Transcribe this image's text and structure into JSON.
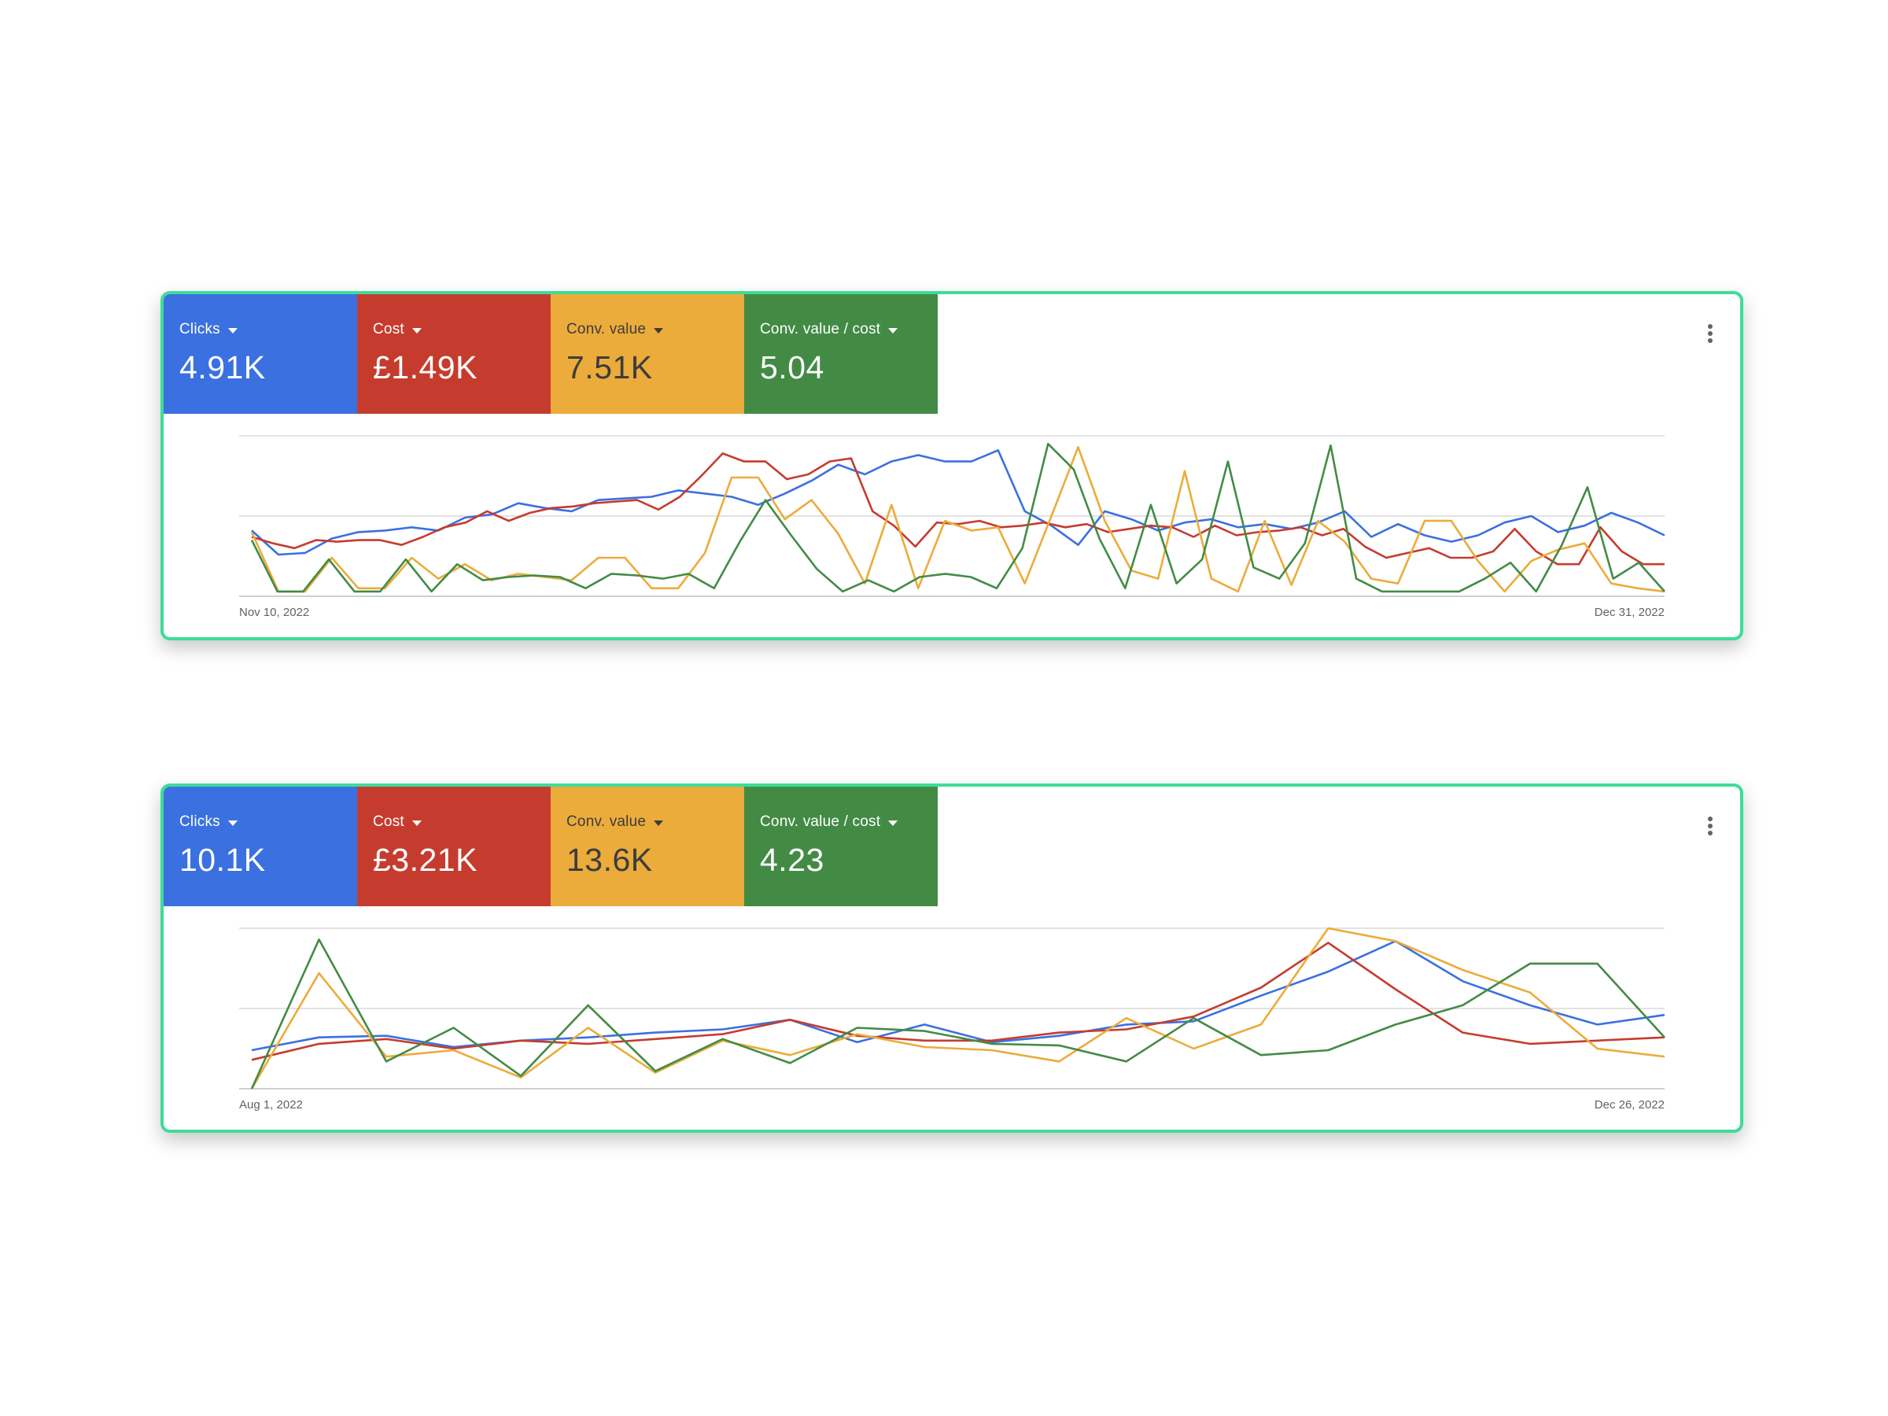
{
  "cards": [
    {
      "tiles": [
        {
          "label": "Clicks",
          "value": "4.91K",
          "color": "#3b70e0"
        },
        {
          "label": "Cost",
          "value": "£1.49K",
          "color": "#c53c2f"
        },
        {
          "label": "Conv. value",
          "value": "7.51K",
          "color": "#ebac3b"
        },
        {
          "label": "Conv. value / cost",
          "value": "5.04",
          "color": "#438b45"
        }
      ],
      "menu_icon": "more-vert-icon",
      "axis": {
        "start": "Nov 10, 2022",
        "end": "Dec 31, 2022"
      },
      "chart_data": {
        "type": "line",
        "grid": true,
        "ylim": [
          0,
          100
        ],
        "series": [
          {
            "color": "#3b70e0",
            "values": [
              41,
              26,
              27,
              36,
              40,
              41,
              43,
              41,
              49,
              51,
              58,
              55,
              53,
              60,
              61,
              62,
              66,
              64,
              62,
              57,
              64,
              72,
              82,
              76,
              84,
              88,
              84,
              84,
              91,
              53,
              44,
              32,
              53,
              48,
              41,
              46,
              48,
              43,
              45,
              42,
              46,
              53,
              37,
              45,
              38,
              34,
              38,
              46,
              50,
              40,
              44,
              52,
              46,
              38
            ]
          },
          {
            "color": "#c53c2f",
            "values": [
              37,
              33,
              30,
              35,
              34,
              35,
              35,
              32,
              37,
              43,
              46,
              53,
              47,
              52,
              55,
              56,
              58,
              59,
              60,
              54,
              62,
              75,
              89,
              84,
              84,
              73,
              76,
              84,
              86,
              53,
              44,
              31,
              46,
              45,
              47,
              43,
              44,
              46,
              43,
              45,
              40,
              42,
              44,
              43,
              37,
              44,
              38,
              40,
              41,
              43,
              38,
              42,
              31,
              24,
              27,
              30,
              24,
              24,
              28,
              42,
              28,
              20,
              20,
              43,
              28,
              20,
              20
            ]
          },
          {
            "color": "#ebac3b",
            "values": [
              40,
              3,
              3,
              24,
              5,
              5,
              24,
              11,
              20,
              10,
              14,
              12,
              10,
              24,
              24,
              5,
              5,
              27,
              74,
              74,
              48,
              60,
              39,
              8,
              57,
              5,
              47,
              41,
              43,
              8,
              50,
              93,
              47,
              16,
              11,
              78,
              11,
              3,
              47,
              7,
              47,
              34,
              11,
              8,
              47,
              47,
              22,
              3,
              22,
              29,
              33,
              8,
              5,
              3
            ]
          },
          {
            "color": "#438b45",
            "values": [
              35,
              3,
              3,
              23,
              3,
              3,
              23,
              3,
              20,
              10,
              12,
              13,
              12,
              5,
              14,
              13,
              11,
              14,
              5,
              34,
              60,
              38,
              17,
              3,
              10,
              3,
              12,
              14,
              12,
              5,
              30,
              95,
              79,
              36,
              5,
              57,
              8,
              23,
              84,
              18,
              11,
              33,
              94,
              11,
              3,
              3,
              3,
              3,
              11,
              21,
              3,
              32,
              68,
              11,
              21,
              3
            ]
          }
        ]
      }
    },
    {
      "tiles": [
        {
          "label": "Clicks",
          "value": "10.1K",
          "color": "#3b70e0"
        },
        {
          "label": "Cost",
          "value": "£3.21K",
          "color": "#c53c2f"
        },
        {
          "label": "Conv. value",
          "value": "13.6K",
          "color": "#ebac3b"
        },
        {
          "label": "Conv. value / cost",
          "value": "4.23",
          "color": "#438b45"
        }
      ],
      "menu_icon": "more-vert-icon",
      "axis": {
        "start": "Aug 1, 2022",
        "end": "Dec 26, 2022"
      },
      "chart_data": {
        "type": "line",
        "grid": true,
        "ylim": [
          0,
          100
        ],
        "series": [
          {
            "color": "#3b70e0",
            "values": [
              24,
              32,
              33,
              26,
              30,
              32,
              35,
              37,
              43,
              29,
              40,
              29,
              33,
              40,
              42,
              58,
              73,
              92,
              67,
              52,
              40,
              46
            ]
          },
          {
            "color": "#c53c2f",
            "values": [
              18,
              28,
              31,
              25,
              30,
              28,
              31,
              34,
              43,
              33,
              30,
              30,
              35,
              37,
              45,
              63,
              91,
              62,
              35,
              28,
              30,
              32
            ]
          },
          {
            "color": "#ebac3b",
            "values": [
              0,
              72,
              20,
              24,
              7,
              38,
              10,
              30,
              21,
              34,
              26,
              24,
              17,
              44,
              25,
              40,
              100,
              92,
              74,
              60,
              25,
              20
            ]
          },
          {
            "color": "#438b45",
            "values": [
              0,
              93,
              17,
              38,
              8,
              52,
              11,
              31,
              16,
              38,
              36,
              28,
              27,
              17,
              44,
              21,
              24,
              40,
              52,
              78,
              78,
              32
            ]
          }
        ]
      }
    }
  ]
}
